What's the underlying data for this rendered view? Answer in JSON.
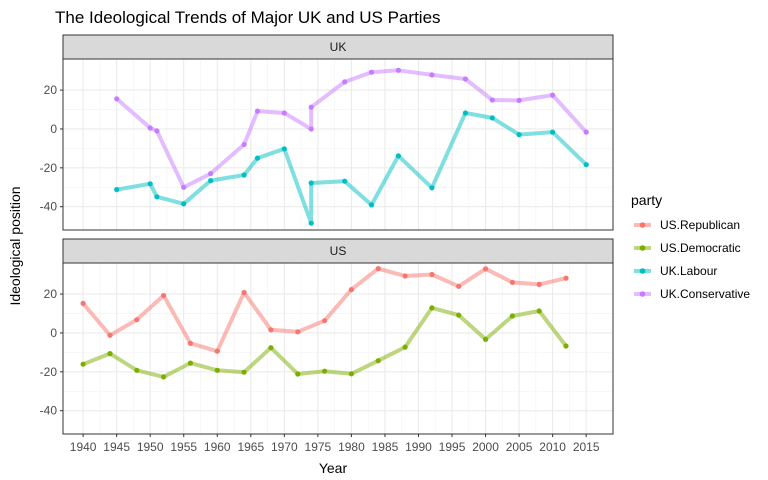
{
  "chart_data": {
    "type": "line",
    "title": "The Ideological Trends of Major UK and US Parties",
    "xlabel": "Year",
    "ylabel": "Ideological position",
    "xlim": [
      1937,
      2019
    ],
    "ylim": [
      -52,
      36
    ],
    "x_ticks": [
      1940,
      1945,
      1950,
      1955,
      1960,
      1965,
      1970,
      1975,
      1980,
      1985,
      1990,
      1995,
      2000,
      2005,
      2010,
      2015
    ],
    "y_ticks": [
      -40,
      -20,
      0,
      20
    ],
    "grid": true,
    "legend": {
      "title": "party",
      "position": "right",
      "entries": [
        {
          "label": "US.Republican",
          "color": "#F8766D"
        },
        {
          "label": "US.Democratic",
          "color": "#7CAE00"
        },
        {
          "label": "UK.Labour",
          "color": "#00BFC4"
        },
        {
          "label": "UK.Conservative",
          "color": "#C77CFF"
        }
      ]
    },
    "panels": [
      {
        "strip": "UK",
        "series": [
          {
            "name": "UK.Conservative",
            "color": "#C77CFF",
            "points": [
              [
                1945,
                15.5
              ],
              [
                1950,
                0.5
              ],
              [
                1951,
                -1
              ],
              [
                1955,
                -30
              ],
              [
                1959,
                -23
              ],
              [
                1964,
                -8
              ],
              [
                1966,
                9.2
              ],
              [
                1970,
                8.2
              ],
              [
                1974,
                0
              ],
              [
                1974,
                11.2
              ],
              [
                1979,
                24.2
              ],
              [
                1983,
                29.2
              ],
              [
                1987,
                30.2
              ],
              [
                1992,
                27.8
              ],
              [
                1997,
                25.7
              ],
              [
                2001,
                14.9
              ],
              [
                2005,
                14.7
              ],
              [
                2010,
                17.4
              ],
              [
                2015,
                -1.6
              ]
            ]
          },
          {
            "name": "UK.Labour",
            "color": "#00BFC4",
            "points": [
              [
                1945,
                -31.2
              ],
              [
                1950,
                -28.2
              ],
              [
                1951,
                -34.9
              ],
              [
                1955,
                -38.5
              ],
              [
                1959,
                -26.6
              ],
              [
                1964,
                -23.7
              ],
              [
                1966,
                -15
              ],
              [
                1970,
                -10.2
              ],
              [
                1974,
                -48.5
              ],
              [
                1974,
                -27.8
              ],
              [
                1979,
                -26.9
              ],
              [
                1983,
                -39.1
              ],
              [
                1987,
                -13.8
              ],
              [
                1992,
                -30.3
              ],
              [
                1997,
                8.2
              ],
              [
                2001,
                5.7
              ],
              [
                2005,
                -2.9
              ],
              [
                2010,
                -1.6
              ],
              [
                2015,
                -18.4
              ]
            ]
          }
        ]
      },
      {
        "strip": "US",
        "series": [
          {
            "name": "US.Republican",
            "color": "#F8766D",
            "points": [
              [
                1940,
                15.2
              ],
              [
                1944,
                -1.2
              ],
              [
                1948,
                6.8
              ],
              [
                1952,
                19.3
              ],
              [
                1956,
                -5.3
              ],
              [
                1960,
                -9.4
              ],
              [
                1964,
                20.8
              ],
              [
                1968,
                1.6
              ],
              [
                1972,
                0.6
              ],
              [
                1976,
                6.3
              ],
              [
                1980,
                22.3
              ],
              [
                1984,
                33.1
              ],
              [
                1988,
                29.3
              ],
              [
                1992,
                30.1
              ],
              [
                1996,
                24
              ],
              [
                2000,
                33
              ],
              [
                2004,
                26
              ],
              [
                2008,
                25
              ],
              [
                2012,
                28.2
              ]
            ]
          },
          {
            "name": "US.Democratic",
            "color": "#7CAE00",
            "points": [
              [
                1940,
                -16.1
              ],
              [
                1944,
                -10.6
              ],
              [
                1948,
                -19.2
              ],
              [
                1952,
                -22.6
              ],
              [
                1956,
                -15.5
              ],
              [
                1960,
                -19.2
              ],
              [
                1964,
                -20.2
              ],
              [
                1968,
                -7.6
              ],
              [
                1972,
                -21.1
              ],
              [
                1976,
                -19.7
              ],
              [
                1980,
                -21
              ],
              [
                1984,
                -14.3
              ],
              [
                1988,
                -7.3
              ],
              [
                1992,
                12.9
              ],
              [
                1996,
                9.2
              ],
              [
                2000,
                -3.3
              ],
              [
                2004,
                8.7
              ],
              [
                2008,
                11.3
              ],
              [
                2012,
                -6.7
              ]
            ]
          }
        ]
      }
    ]
  }
}
